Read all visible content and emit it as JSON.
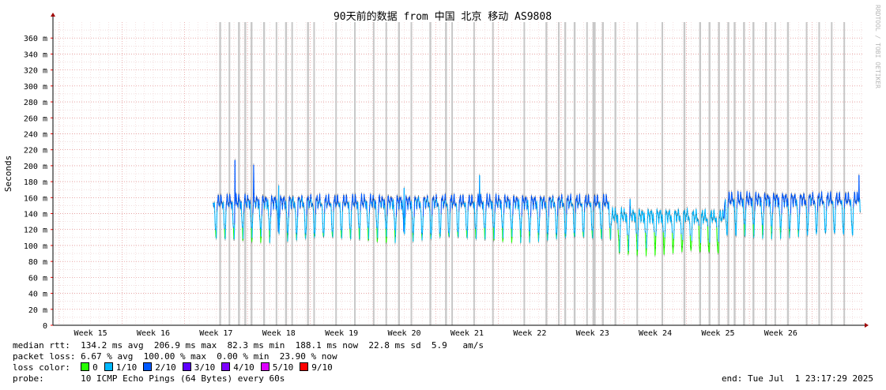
{
  "watermark": "RRDTOOL / TOBI OETIKER",
  "chart_data": {
    "type": "area",
    "title": "90天前的数据 from 中国 北京 移动 AS9808",
    "ylabel": "Seconds",
    "ylim": [
      0,
      380
    ],
    "y_ticks": [
      {
        "v": 0,
        "label": "0"
      },
      {
        "v": 20,
        "label": "20 m"
      },
      {
        "v": 40,
        "label": "40 m"
      },
      {
        "v": 60,
        "label": "60 m"
      },
      {
        "v": 80,
        "label": "80 m"
      },
      {
        "v": 100,
        "label": "100 m"
      },
      {
        "v": 120,
        "label": "120 m"
      },
      {
        "v": 140,
        "label": "140 m"
      },
      {
        "v": 160,
        "label": "160 m"
      },
      {
        "v": 180,
        "label": "180 m"
      },
      {
        "v": 200,
        "label": "200 m"
      },
      {
        "v": 220,
        "label": "220 m"
      },
      {
        "v": 240,
        "label": "240 m"
      },
      {
        "v": 260,
        "label": "260 m"
      },
      {
        "v": 280,
        "label": "280 m"
      },
      {
        "v": 300,
        "label": "300 m"
      },
      {
        "v": 320,
        "label": "320 m"
      },
      {
        "v": 340,
        "label": "340 m"
      },
      {
        "v": 360,
        "label": "360 m"
      }
    ],
    "x_range_weeks": [
      14.4,
      27.3
    ],
    "x_ticks": [
      {
        "w": 15,
        "label": "Week 15"
      },
      {
        "w": 16,
        "label": "Week 16"
      },
      {
        "w": 17,
        "label": "Week 17"
      },
      {
        "w": 18,
        "label": "Week 18"
      },
      {
        "w": 19,
        "label": "Week 19"
      },
      {
        "w": 20,
        "label": "Week 20"
      },
      {
        "w": 21,
        "label": "Week 21"
      },
      {
        "w": 22,
        "label": "Week 22"
      },
      {
        "w": 23,
        "label": "Week 23"
      },
      {
        "w": 24,
        "label": "Week 24"
      },
      {
        "w": 25,
        "label": "Week 25"
      },
      {
        "w": 26,
        "label": "Week 26"
      }
    ],
    "data_start_week": 16.95,
    "data_end_week": 27.27,
    "daily_pattern_ms": {
      "low": 103,
      "high": 155
    },
    "segments": [
      {
        "from_week": 16.95,
        "to_week": 23.3,
        "low": 103,
        "high": 155
      },
      {
        "from_week": 23.3,
        "to_week": 24.6,
        "low": 87,
        "high": 138
      },
      {
        "from_week": 24.6,
        "to_week": 25.1,
        "low": 84,
        "high": 136
      },
      {
        "from_week": 25.1,
        "to_week": 26.5,
        "low": 108,
        "high": 158
      }
    ],
    "spikes": [
      {
        "week": 17.3,
        "value_ms": 206.9
      },
      {
        "week": 17.6,
        "value_ms": 201
      },
      {
        "week": 18.0,
        "value_ms": 175
      },
      {
        "week": 20.0,
        "value_ms": 172
      },
      {
        "week": 21.2,
        "value_ms": 188
      },
      {
        "week": 23.6,
        "value_ms": 158
      },
      {
        "week": 27.25,
        "value_ms": 188.1
      }
    ],
    "loss_bands_weeks": [
      [
        17.05,
        17.08
      ],
      [
        17.2,
        17.22
      ],
      [
        17.35,
        17.38
      ],
      [
        17.45,
        17.48
      ],
      [
        17.55,
        17.58
      ],
      [
        17.75,
        17.78
      ],
      [
        17.95,
        17.97
      ],
      [
        18.1,
        18.13
      ],
      [
        18.2,
        18.22
      ],
      [
        18.45,
        18.48
      ],
      [
        18.55,
        18.57
      ],
      [
        18.9,
        18.92
      ],
      [
        19.2,
        19.22
      ],
      [
        19.5,
        19.52
      ],
      [
        19.7,
        19.72
      ],
      [
        19.9,
        19.93
      ],
      [
        20.1,
        20.12
      ],
      [
        20.4,
        20.43
      ],
      [
        20.65,
        20.68
      ],
      [
        20.75,
        20.77
      ],
      [
        21.1,
        21.12
      ],
      [
        21.4,
        21.42
      ],
      [
        21.9,
        21.92
      ],
      [
        22.25,
        22.28
      ],
      [
        22.45,
        22.47
      ],
      [
        22.55,
        22.58
      ],
      [
        22.7,
        22.73
      ],
      [
        22.9,
        22.92
      ],
      [
        23.0,
        23.05
      ],
      [
        23.15,
        23.18
      ],
      [
        23.35,
        23.38
      ],
      [
        23.7,
        23.72
      ],
      [
        24.1,
        24.12
      ],
      [
        24.45,
        24.48
      ],
      [
        24.7,
        24.73
      ],
      [
        24.85,
        24.88
      ],
      [
        25.0,
        25.03
      ],
      [
        25.15,
        25.18
      ],
      [
        25.25,
        25.28
      ],
      [
        25.4,
        25.43
      ],
      [
        25.55,
        25.58
      ],
      [
        25.75,
        25.78
      ],
      [
        25.9,
        25.92
      ],
      [
        26.1,
        26.13
      ],
      [
        26.4,
        26.42
      ],
      [
        26.6,
        26.62
      ],
      [
        26.8,
        26.82
      ],
      [
        27.0,
        27.02
      ]
    ],
    "grid": true
  },
  "legend": {
    "rtt_label": "median rtt:",
    "rtt_text": "134.2 ms avg  206.9 ms max  82.3 ms min  188.1 ms now  22.8 ms sd  5.9   am/s",
    "loss_label": "packet loss:",
    "loss_text": "6.67 % avg  100.00 % max  0.00 % min  23.90 % now",
    "color_label": "loss color:",
    "colors": [
      {
        "label": "0",
        "color": "#26ff00"
      },
      {
        "label": "1/10",
        "color": "#00b8ff"
      },
      {
        "label": "2/10",
        "color": "#0059ff"
      },
      {
        "label": "3/10",
        "color": "#5e00ff"
      },
      {
        "label": "4/10",
        "color": "#7e00ff"
      },
      {
        "label": "5/10",
        "color": "#dd00ff"
      },
      {
        "label": "9/10",
        "color": "#ff0000"
      }
    ],
    "probe_label": "probe:",
    "probe_text": "10 ICMP Echo Pings (64 Bytes) every 60s",
    "end_text": "end: Tue Jul  1 23:17:29 2025"
  }
}
